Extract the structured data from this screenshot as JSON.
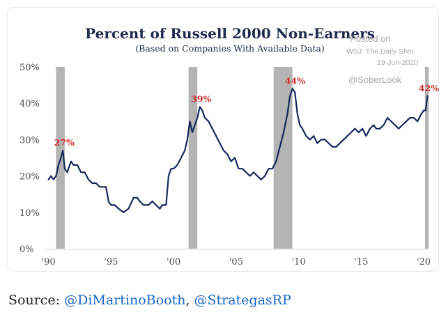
{
  "chart_data": {
    "type": "line",
    "title": "Percent of Russell 2000 Non-Earners",
    "subtitle": "(Based on Companies With Available Data)",
    "xlabel": "",
    "ylabel": "",
    "xlim": [
      1989.8,
      2020.5
    ],
    "ylim": [
      0,
      50
    ],
    "y_ticks": [
      0,
      10,
      20,
      30,
      40,
      50
    ],
    "y_tick_labels": [
      "0%",
      "10%",
      "20%",
      "30%",
      "40%",
      "50%"
    ],
    "x_ticks": [
      1990,
      1995,
      2000,
      2005,
      2010,
      2015,
      2020
    ],
    "x_tick_labels": [
      "'90",
      "'95",
      "'00",
      "'05",
      "'10",
      "'15",
      "'20"
    ],
    "recessions": [
      {
        "start": 1990.6,
        "end": 1991.3
      },
      {
        "start": 2001.2,
        "end": 2001.9
      },
      {
        "start": 2008.0,
        "end": 2009.5
      },
      {
        "start": 2020.1,
        "end": 2020.4
      }
    ],
    "series": [
      {
        "name": "Percent of Russell 2000 Non-Earners",
        "color": "#16285a",
        "x": [
          1990.0,
          1990.2,
          1990.4,
          1990.6,
          1990.8,
          1991.0,
          1991.15,
          1991.3,
          1991.5,
          1991.8,
          1992.0,
          1992.3,
          1992.6,
          1992.9,
          1993.2,
          1993.5,
          1993.8,
          1994.1,
          1994.4,
          1994.6,
          1994.8,
          1995.0,
          1995.3,
          1995.6,
          1996.0,
          1996.4,
          1996.8,
          1997.1,
          1997.3,
          1997.6,
          1998.0,
          1998.3,
          1998.6,
          1998.9,
          1999.1,
          1999.4,
          1999.6,
          1999.8,
          2000.0,
          2000.3,
          2000.6,
          2000.9,
          2001.1,
          2001.3,
          2001.5,
          2001.7,
          2001.9,
          2002.1,
          2002.3,
          2002.5,
          2002.8,
          2003.1,
          2003.4,
          2003.7,
          2004.0,
          2004.3,
          2004.6,
          2004.9,
          2005.2,
          2005.5,
          2005.8,
          2006.1,
          2006.4,
          2006.7,
          2007.0,
          2007.3,
          2007.6,
          2007.9,
          2008.2,
          2008.5,
          2008.8,
          2009.1,
          2009.3,
          2009.5,
          2009.7,
          2009.9,
          2010.1,
          2010.3,
          2010.6,
          2010.9,
          2011.2,
          2011.5,
          2011.8,
          2012.1,
          2012.4,
          2012.7,
          2013.0,
          2013.3,
          2013.6,
          2013.9,
          2014.2,
          2014.5,
          2014.8,
          2015.1,
          2015.4,
          2015.7,
          2016.0,
          2016.2,
          2016.5,
          2016.8,
          2017.1,
          2017.4,
          2017.7,
          2018.0,
          2018.3,
          2018.6,
          2018.9,
          2019.2,
          2019.5,
          2019.8,
          2020.0,
          2020.15,
          2020.3
        ],
        "values": [
          19,
          20,
          19,
          20,
          23,
          25,
          27,
          22,
          21,
          24,
          23,
          23,
          21,
          21,
          19,
          18,
          18,
          17,
          17,
          17,
          13,
          12,
          12,
          11,
          10,
          11,
          14,
          14,
          13,
          12,
          12,
          13,
          12,
          11,
          12,
          12,
          20,
          22,
          22,
          23,
          25,
          27,
          30,
          35,
          32,
          34,
          36,
          39,
          38,
          36,
          35,
          33,
          31,
          29,
          27,
          26,
          24,
          25,
          22,
          22,
          21,
          20,
          21,
          20,
          19,
          20,
          22,
          22,
          24,
          28,
          32,
          37,
          42,
          44,
          43,
          37,
          34,
          33,
          31,
          30,
          31,
          29,
          30,
          30,
          29,
          28,
          28,
          29,
          30,
          31,
          32,
          33,
          32,
          33,
          31,
          33,
          34,
          33,
          33,
          34,
          36,
          35,
          34,
          33,
          34,
          35,
          36,
          36,
          35,
          37,
          38,
          38,
          42
        ]
      }
    ],
    "annotations": [
      {
        "label": "27%",
        "x": 1991.15,
        "y": 27
      },
      {
        "label": "39%",
        "x": 2002.1,
        "y": 39
      },
      {
        "label": "44%",
        "x": 2009.6,
        "y": 44
      },
      {
        "label": "42%",
        "x": 2020.3,
        "y": 42
      }
    ],
    "watermark": {
      "posted": "Posted on",
      "outlet": "WSJ: The Daily Shot",
      "date": "19-Jun-2020",
      "handle": "@SoberLook"
    },
    "legend": "none",
    "grid": false
  },
  "source": {
    "label": "Source:",
    "link1": "@DiMartinoBooth",
    "separator": ",",
    "link2": "@StrategasRP"
  }
}
